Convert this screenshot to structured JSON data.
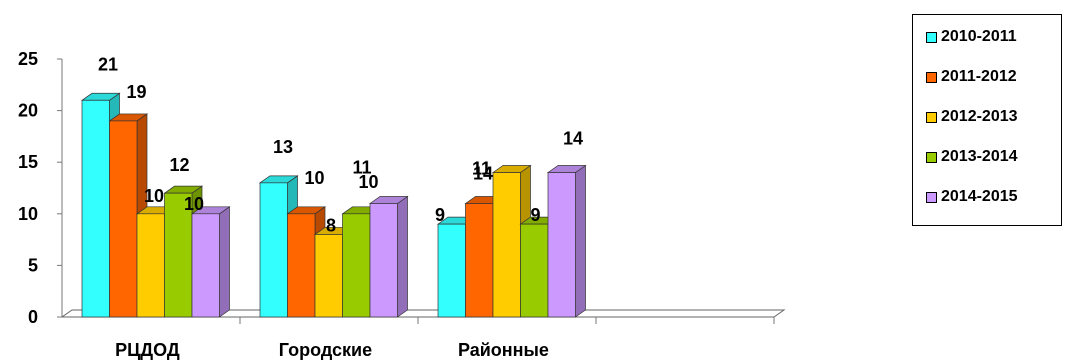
{
  "chart_data": {
    "type": "bar",
    "categories": [
      "РЦДОД",
      "Городские",
      "Районные",
      ""
    ],
    "series": [
      {
        "name": "2010-2011",
        "color": "#33FFFF",
        "values": [
          21,
          13,
          9,
          null
        ]
      },
      {
        "name": "2011-2012",
        "color": "#FF6600",
        "values": [
          19,
          10,
          11,
          null
        ]
      },
      {
        "name": "2012-2013",
        "color": "#FFCC00",
        "values": [
          10,
          8,
          14,
          null
        ]
      },
      {
        "name": "2013-2014",
        "color": "#99CC00",
        "values": [
          12,
          10,
          9,
          null
        ]
      },
      {
        "name": "2014-2015",
        "color": "#CC99FF",
        "values": [
          10,
          11,
          14,
          null
        ]
      }
    ],
    "data_labels": [
      [
        "21",
        "13",
        "9",
        ""
      ],
      [
        "19",
        "10",
        "11",
        ""
      ],
      [
        "10",
        "8",
        "14",
        ""
      ],
      [
        "12",
        "10",
        "9",
        ""
      ],
      [
        "10",
        "11",
        "14",
        ""
      ]
    ],
    "yticks": [
      "0",
      "5",
      "10",
      "15",
      "20",
      "25"
    ],
    "ylim": [
      0,
      25
    ],
    "legend_position": "right",
    "grid": false,
    "three_d": true
  }
}
